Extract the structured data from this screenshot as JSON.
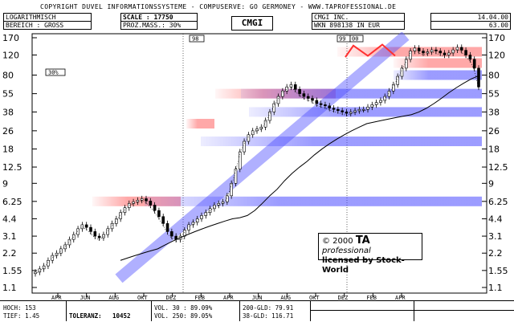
{
  "header": {
    "copyright": "COPYRIGHT  DUVEL INFORMATIONSSYSTEME - COMPUSERVE: GO GERMONEY - WWW.TAPROFESSIONAL.DE",
    "scale_mode": "LOGARITHMISCH",
    "range": "BEREICH : GROSS",
    "scale": "SCALE : 17750",
    "proz_mass": "PROZ.MASS.: 30%",
    "ticker": "CMGI",
    "company": "CMGI  INC.",
    "wkn": "WKN 898138  IN EUR",
    "date": "14.04.00",
    "last_price": "63.00"
  },
  "markers": {
    "left_pct": "30%",
    "top_a": "98",
    "top_b": "99",
    "top_c": "00"
  },
  "watermark": {
    "line1_prefix": "© 2000 ",
    "brand": "TA",
    "brand_suffix": " professional",
    "line2": "licensed by Stock-World"
  },
  "footer": {
    "high": "HOCH:  153",
    "low": "TIEF:  1.45",
    "tolerance_label": "TOLERANZ:",
    "tolerance_value": "10452",
    "vol30": "VOL. 30 : 89.09%",
    "vol250": "VOL. 250: 89.05%",
    "gld200": "200-GLD: 79.91",
    "gld38": "38-GLD: 116.71"
  },
  "chart_data": {
    "type": "candlestick",
    "y_scale": "log",
    "ylim": [
      1.1,
      170
    ],
    "y_ticks": [
      "170",
      "120",
      "80",
      "55",
      "38",
      "26",
      "18",
      "12.5",
      "9",
      "6.25",
      "4.4",
      "3.1",
      "2.2",
      "1.55",
      "1.1"
    ],
    "x_ticks": [
      "APR",
      "JUN",
      "AUG",
      "OKT",
      "DEZ",
      "FEB",
      "APR",
      "JUN",
      "AUG",
      "OKT",
      "DEZ",
      "FEB",
      "APR"
    ],
    "close_series": [
      1.5,
      1.6,
      1.7,
      1.9,
      2.1,
      2.2,
      2.4,
      2.6,
      2.9,
      3.2,
      3.6,
      3.9,
      3.7,
      3.4,
      3.1,
      3.0,
      3.2,
      3.6,
      4.0,
      4.4,
      5.0,
      5.5,
      6.0,
      6.2,
      6.4,
      6.6,
      6.3,
      5.8,
      5.2,
      4.6,
      4.0,
      3.4,
      3.1,
      2.9,
      3.1,
      3.5,
      3.9,
      4.1,
      4.4,
      4.7,
      5.0,
      5.4,
      5.8,
      6.0,
      6.2,
      7.0,
      9.0,
      12.0,
      17.0,
      21.0,
      24.0,
      26.0,
      27.0,
      28.0,
      32.0,
      38.0,
      45.0,
      52.0,
      58.0,
      63.0,
      66.0,
      60.0,
      55.0,
      52.0,
      50.0,
      48.0,
      45.0,
      44.0,
      43.0,
      41.0,
      40.0,
      39.0,
      38.0,
      37.0,
      38.0,
      39.0,
      40.0,
      40.0,
      42.0,
      44.0,
      46.0,
      48.0,
      52.0,
      58.0,
      66.0,
      78.0,
      92.0,
      110.0,
      130.0,
      138.0,
      130.0,
      125.0,
      128.0,
      133.0,
      130.0,
      125.0,
      120.0,
      125.0,
      133.0,
      140.0,
      132.0,
      120.0,
      110.0,
      92.0,
      63.0
    ],
    "moving_average": [
      1.9,
      2.0,
      2.1,
      2.2,
      2.3,
      2.4,
      2.6,
      2.8,
      3.0,
      3.2,
      3.4,
      3.6,
      3.8,
      4.0,
      4.2,
      4.4,
      4.5,
      4.7,
      5.2,
      6.0,
      7.0,
      8.0,
      9.5,
      11.0,
      12.5,
      14.0,
      16.0,
      18.0,
      20.0,
      22.0,
      24.0,
      26.0,
      28.0,
      30.0,
      31.0,
      32.0,
      33.0,
      34.0,
      35.0,
      36.0,
      38.0,
      41.0,
      45.0,
      50.0,
      56.0,
      62.0,
      68.0,
      74.0,
      79.0
    ],
    "channels": [
      {
        "color": "#ff6f6f",
        "level": 6.25,
        "kind": "resistance"
      },
      {
        "color": "#ff6f6f",
        "level": 30,
        "kind": "resistance"
      },
      {
        "color": "#ff6f6f",
        "level": 55,
        "kind": "resistance"
      },
      {
        "color": "#ff6f6f",
        "level": 130,
        "kind": "resistance"
      },
      {
        "color": "#ff6f6f",
        "level": 105,
        "kind": "resistance"
      },
      {
        "color": "#6f6fff",
        "level": 55,
        "kind": "support"
      },
      {
        "color": "#6f6fff",
        "level": 38,
        "kind": "support"
      },
      {
        "color": "#6f6fff",
        "level": 21,
        "kind": "support"
      },
      {
        "color": "#6f6fff",
        "level": 6.25,
        "kind": "support"
      },
      {
        "color": "#6f6fff",
        "level": 80,
        "kind": "support"
      }
    ],
    "trendline": {
      "from": 1.45,
      "to": 120,
      "color": "#6f6fff"
    }
  }
}
